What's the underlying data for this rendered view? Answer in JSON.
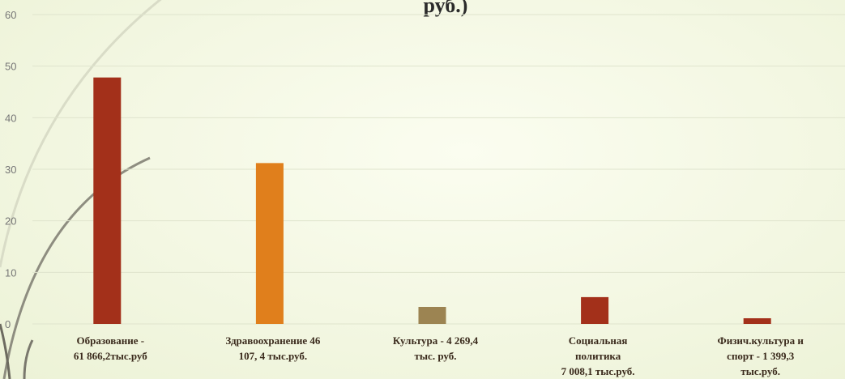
{
  "chart_data": {
    "type": "bar",
    "title": "руб.)",
    "xlabel": "",
    "ylabel": "",
    "ylim": [
      0,
      60
    ],
    "yticks": [
      0,
      10,
      20,
      30,
      40,
      50,
      60
    ],
    "grid": true,
    "categories": [
      [
        "Образование  -",
        "61 866,2тыс.руб"
      ],
      [
        "Здравоохранение  46",
        "107, 4 тыс.руб."
      ],
      [
        "Культура  -      4 269,4",
        "тыс. руб."
      ],
      [
        "Социальная",
        "политика",
        "7 008,1 тыс.руб."
      ],
      [
        "Физич.культура и",
        "спорт  -  1 399,3",
        "тыс.руб."
      ]
    ],
    "values": [
      47.8,
      31.2,
      3.3,
      5.2,
      1.1
    ],
    "colors": [
      "#a3301a",
      "#e07f1c",
      "#9c8452",
      "#a3301a",
      "#a3301a"
    ]
  }
}
